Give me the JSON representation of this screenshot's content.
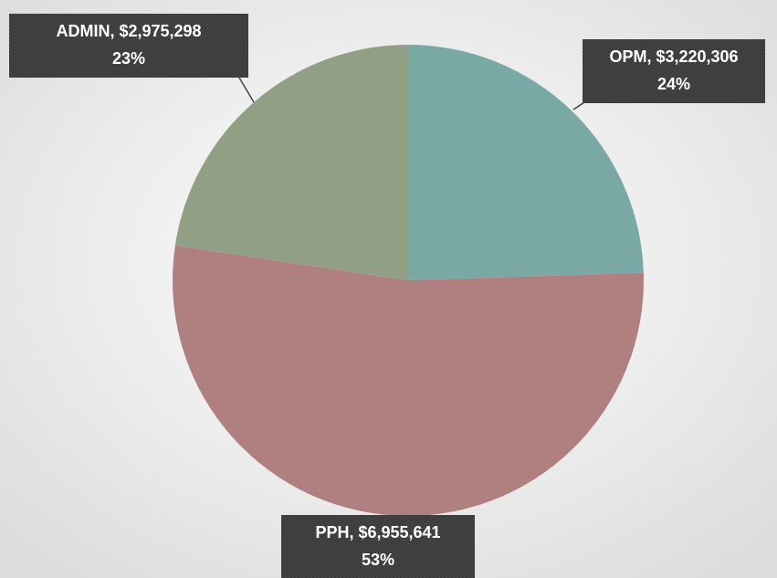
{
  "chart_data": {
    "type": "pie",
    "values": [
      3220306,
      6955641,
      2975298
    ],
    "value_labels": [
      "OPM,  $3,220,306",
      "PPH,  $6,955,641",
      "ADMIN,  $2,975,298"
    ],
    "percent_labels": [
      "24%",
      "53%",
      "23%"
    ],
    "colors": [
      "#7aa8a4",
      "#b08080",
      "#919f84"
    ]
  }
}
